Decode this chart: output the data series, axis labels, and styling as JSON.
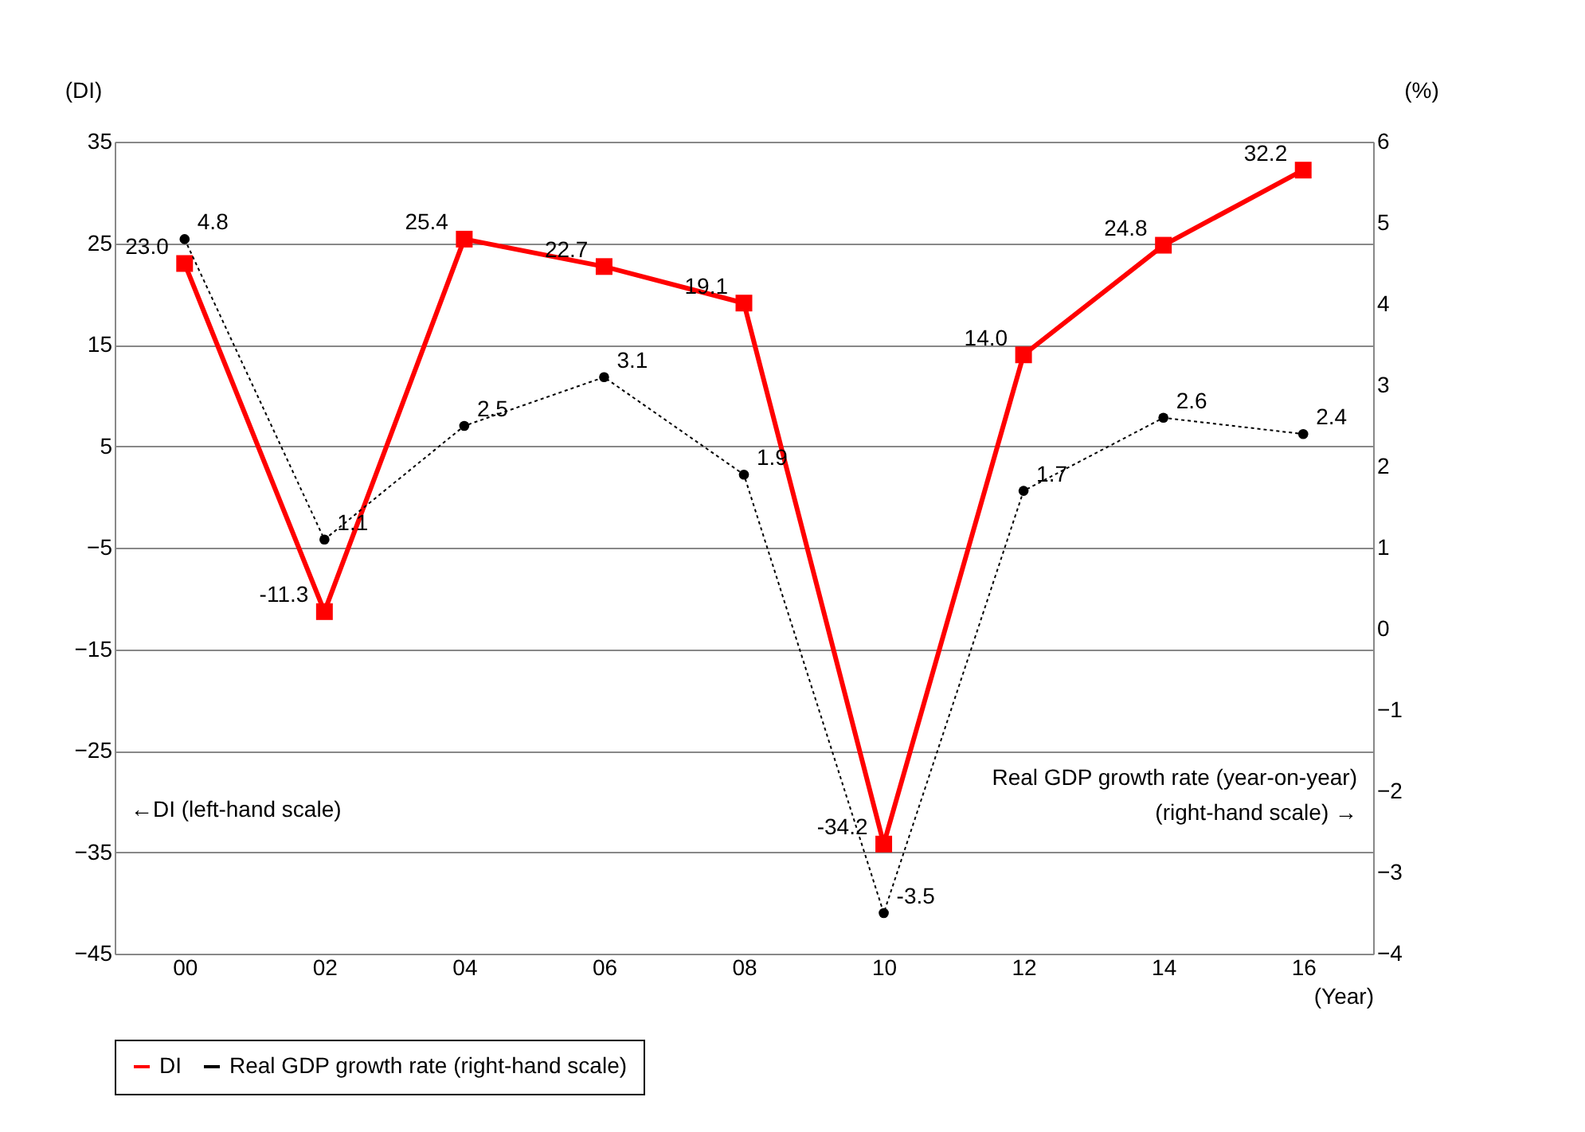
{
  "chart_data": {
    "type": "line",
    "xlabel": "(Year)",
    "ylabel": "(DI)",
    "y2label": "(%)",
    "categories": [
      "00",
      "02",
      "04",
      "06",
      "08",
      "10",
      "12",
      "14",
      "16"
    ],
    "series": [
      {
        "name": "DI",
        "color": "#ff0000",
        "values": [
          23.0,
          -11.3,
          25.4,
          22.7,
          19.1,
          -34.2,
          14.0,
          24.8,
          32.2
        ],
        "value_labels": [
          "23.0",
          "-11.3",
          "25.4",
          "22.7",
          "19.1",
          "-34.2",
          "14.0",
          "24.8",
          "32.2"
        ],
        "marker": "square",
        "line_style": "solid"
      },
      {
        "name": "Real GDP growth rate (right-hand scale)",
        "color": "#000000",
        "axis": "y2",
        "values": [
          4.8,
          1.1,
          2.5,
          3.1,
          1.9,
          -3.5,
          1.7,
          2.6,
          2.4
        ],
        "value_labels": [
          "4.8",
          "1.1",
          "2.5",
          "3.1",
          "1.9",
          "-3.5",
          "1.7",
          "2.6",
          "2.4"
        ],
        "marker": "circle",
        "line_style": "dotted"
      }
    ],
    "ylim": [
      -45,
      35
    ],
    "yticks": [
      -45,
      -35,
      -25,
      -15,
      -5,
      5,
      15,
      25,
      35
    ],
    "y2lim": [
      -4,
      6
    ],
    "y2ticks": [
      -4,
      -3,
      -2,
      -1,
      0,
      1,
      2,
      3,
      4,
      5,
      6
    ],
    "annotations": [
      "←DI (left-hand scale)",
      "Real GDP growth rate (year-on-year) (right-hand scale) →"
    ],
    "grid": "y",
    "legend": "bottom"
  }
}
